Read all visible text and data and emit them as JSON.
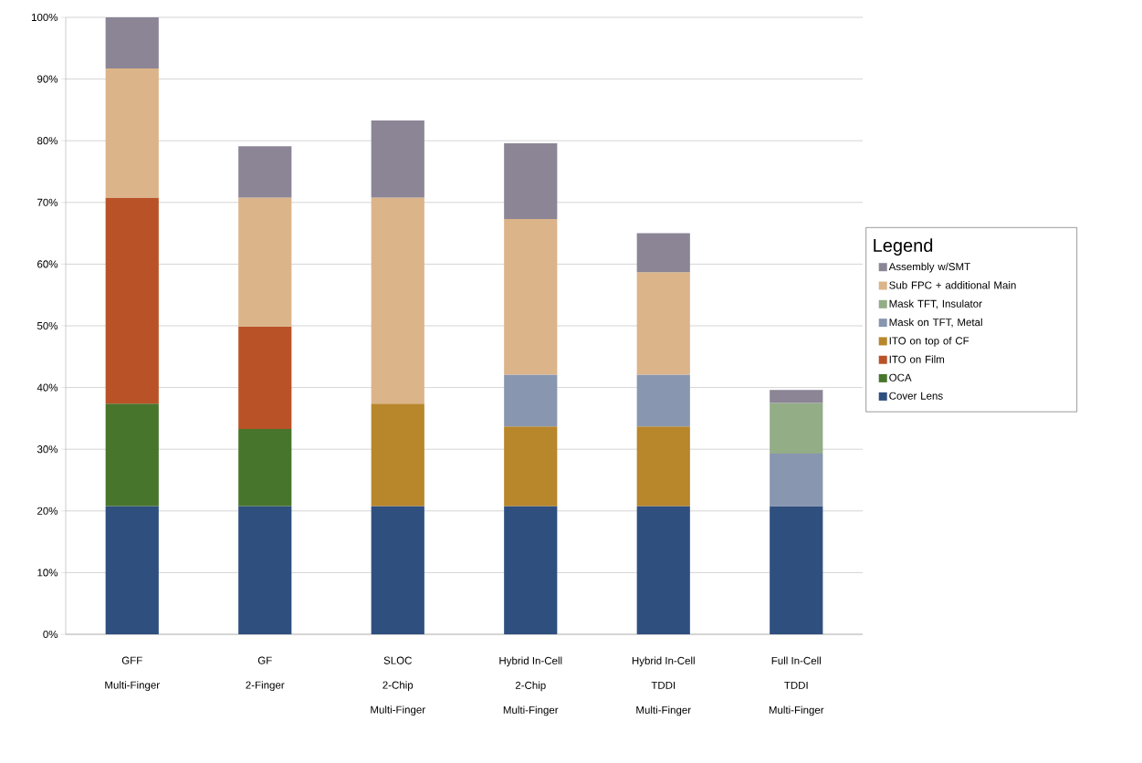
{
  "chart_data": {
    "type": "bar",
    "stacked": true,
    "categories": [
      "GFF\nMulti-Finger",
      "GF\n2-Finger",
      "SLOC\n2-Chip\nMulti-Finger",
      "Hybrid In-Cell\n2-Chip\nMulti-Finger",
      "Hybrid In-Cell\nTDDI\nMulti-Finger",
      "Full In-Cell\nTDDI\nMulti-Finger"
    ],
    "series": [
      {
        "name": "Cover Lens",
        "color": "#2f4f7f",
        "values": [
          20.8,
          20.8,
          20.8,
          20.8,
          20.8,
          20.8
        ]
      },
      {
        "name": "OCA",
        "color": "#48752c",
        "values": [
          16.6,
          12.5,
          null,
          null,
          null,
          null
        ]
      },
      {
        "name": "ITO on Film",
        "color": "#b95327",
        "values": [
          33.4,
          16.6,
          null,
          null,
          null,
          null
        ]
      },
      {
        "name": "ITO on top of CF",
        "color": "#b8862b",
        "values": [
          null,
          null,
          16.6,
          12.9,
          12.9,
          null
        ]
      },
      {
        "name": "Mask on TFT, Metal",
        "color": "#8896b0",
        "values": [
          null,
          null,
          null,
          8.4,
          8.4,
          8.5
        ]
      },
      {
        "name": "Mask TFT, Insulator",
        "color": "#93ad87",
        "values": [
          null,
          null,
          null,
          null,
          null,
          8.2
        ]
      },
      {
        "name": "Sub FPC + additional Main",
        "color": "#dbb489",
        "values": [
          20.9,
          20.9,
          33.4,
          25.2,
          16.6,
          null
        ]
      },
      {
        "name": "Assembly w/SMT",
        "color": "#8c8595",
        "values": [
          8.3,
          8.3,
          12.5,
          12.3,
          6.3,
          2.1
        ]
      }
    ],
    "ylim": [
      0,
      100
    ],
    "yticks": [
      {
        "value": 0,
        "label": "0%"
      },
      {
        "value": 10,
        "label": "10%"
      },
      {
        "value": 20,
        "label": "20%"
      },
      {
        "value": 30,
        "label": "30%"
      },
      {
        "value": 40,
        "label": "40%"
      },
      {
        "value": 50,
        "label": "50%"
      },
      {
        "value": 60,
        "label": "60%"
      },
      {
        "value": 70,
        "label": "70%"
      },
      {
        "value": 80,
        "label": "80%"
      },
      {
        "value": 90,
        "label": "90%"
      },
      {
        "value": 100,
        "label": "100%"
      }
    ],
    "grid": "y",
    "legend": "right",
    "legend_title": "Legend"
  }
}
